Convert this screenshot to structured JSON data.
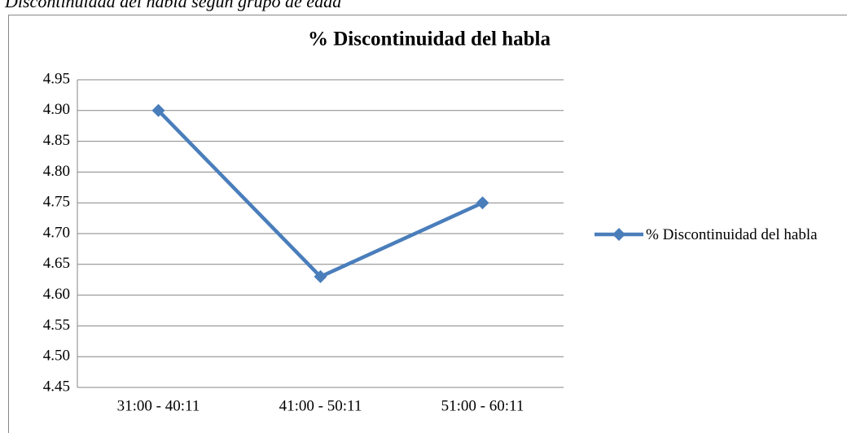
{
  "caption": "Discontinuidad del habla según grupo de edad",
  "chart_data": {
    "type": "line",
    "title": "% Discontinuidad del habla",
    "categories": [
      "31:00 - 40:11",
      "41:00 - 50:11",
      "51:00 - 60:11"
    ],
    "series": [
      {
        "name": "% Discontinuidad del habla",
        "color": "#4a7ebb",
        "values": [
          4.9,
          4.63,
          4.75
        ]
      }
    ],
    "ylim": [
      4.45,
      4.95
    ],
    "yticks": [
      {
        "value": 4.45,
        "label": "4.45"
      },
      {
        "value": 4.5,
        "label": "4.50"
      },
      {
        "value": 4.55,
        "label": "4.55"
      },
      {
        "value": 4.6,
        "label": "4.60"
      },
      {
        "value": 4.65,
        "label": "4.65"
      },
      {
        "value": 4.7,
        "label": "4.70"
      },
      {
        "value": 4.75,
        "label": "4.75"
      },
      {
        "value": 4.8,
        "label": "4.80"
      },
      {
        "value": 4.85,
        "label": "4.85"
      },
      {
        "value": 4.9,
        "label": "4.90"
      },
      {
        "value": 4.95,
        "label": "4.95"
      }
    ],
    "grid": true,
    "legend": "right"
  }
}
